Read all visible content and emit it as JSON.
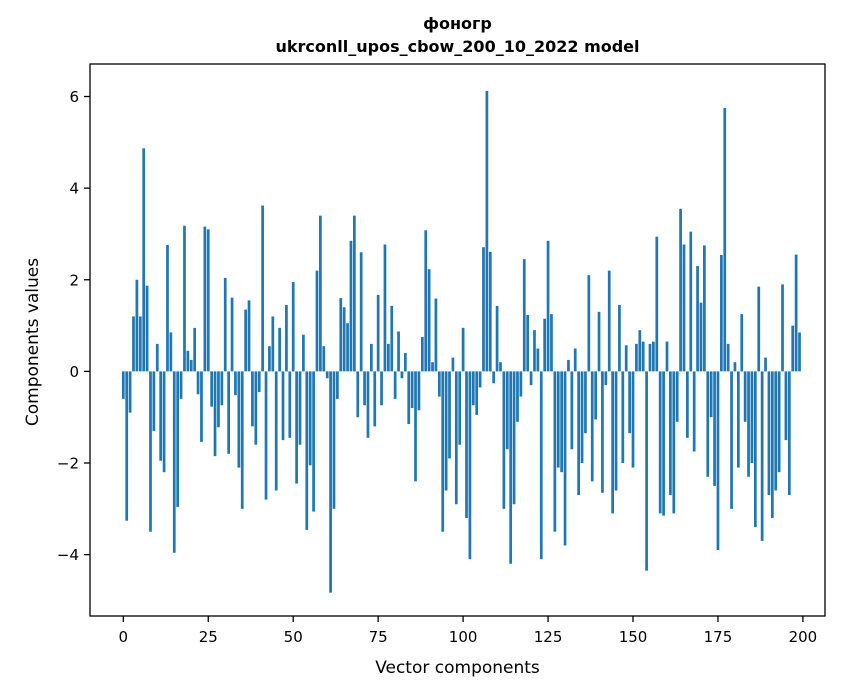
{
  "chart_data": {
    "type": "bar",
    "title": "фоногр",
    "subtitle": "ukrconll_upos_cbow_200_10_2022 model",
    "xlabel": "Vector components",
    "ylabel": "Components values",
    "x_ticks": [
      0,
      25,
      50,
      75,
      100,
      125,
      150,
      175,
      200
    ],
    "y_ticks": [
      6,
      4,
      2,
      0,
      -2,
      -4
    ],
    "xlim": [
      -9.8,
      206.5
    ],
    "ylim": [
      -5.34,
      6.71
    ],
    "grid": false,
    "legend": false,
    "bar_color": "#1f77b4",
    "bar_data_width": 0.8,
    "values": [
      -0.6,
      -3.26,
      -0.9,
      1.2,
      2.0,
      1.2,
      4.87,
      1.87,
      -3.5,
      -1.3,
      0.6,
      -1.95,
      -2.2,
      2.76,
      0.85,
      -3.96,
      -2.96,
      -0.6,
      3.18,
      0.45,
      0.25,
      0.95,
      -0.5,
      -1.54,
      3.16,
      3.1,
      -0.77,
      -1.85,
      -1.22,
      -0.74,
      2.04,
      -1.8,
      1.61,
      -0.52,
      -2.1,
      -3.0,
      1.35,
      1.55,
      -1.2,
      -1.6,
      -0.45,
      3.62,
      -2.8,
      0.55,
      1.2,
      -2.6,
      0.95,
      -1.5,
      1.45,
      -1.45,
      1.95,
      -2.45,
      -1.6,
      0.8,
      -3.46,
      -2.05,
      -3.06,
      2.2,
      3.4,
      0.55,
      -0.15,
      -4.83,
      -3.0,
      -0.6,
      1.6,
      1.4,
      1.05,
      2.85,
      3.4,
      -1.0,
      2.6,
      -0.74,
      -1.45,
      0.6,
      -1.2,
      1.67,
      -0.74,
      2.77,
      0.6,
      1.43,
      -0.6,
      0.87,
      -0.15,
      0.4,
      -1.15,
      -0.8,
      -2.4,
      -0.85,
      0.75,
      3.08,
      2.23,
      0.2,
      1.59,
      -0.55,
      -3.5,
      -2.6,
      -1.9,
      0.3,
      -2.9,
      -1.6,
      0.95,
      -3.2,
      -4.1,
      -0.74,
      -0.95,
      -0.35,
      2.71,
      6.12,
      2.61,
      -0.26,
      1.43,
      0.2,
      -3.0,
      -1.7,
      -4.2,
      -2.9,
      -1.1,
      -0.55,
      2.45,
      1.23,
      -0.3,
      0.9,
      0.5,
      -4.1,
      1.15,
      2.85,
      1.25,
      -3.5,
      -2.1,
      -2.2,
      -3.8,
      0.25,
      -1.7,
      0.5,
      -2.7,
      -2.0,
      -1.35,
      2.1,
      -2.4,
      -1.05,
      1.3,
      -2.65,
      -0.3,
      2.2,
      -3.1,
      -2.6,
      1.45,
      -2.0,
      0.57,
      -1.35,
      -2.1,
      0.6,
      0.9,
      0.65,
      -4.35,
      0.6,
      0.65,
      2.94,
      -3.1,
      -3.15,
      0.65,
      -2.7,
      -3.1,
      -1.1,
      3.55,
      2.77,
      -1.45,
      3.05,
      -1.75,
      2.3,
      1.5,
      2.75,
      -2.3,
      -1.0,
      -2.5,
      -3.9,
      2.54,
      5.75,
      0.6,
      -3.0,
      0.2,
      -2.1,
      1.25,
      -1.1,
      -2.3,
      -2.0,
      -3.4,
      1.85,
      -3.7,
      0.3,
      -2.7,
      -3.2,
      -2.6,
      -2.2,
      1.9,
      -1.5,
      -2.7,
      1.0,
      2.55,
      0.85
    ]
  }
}
